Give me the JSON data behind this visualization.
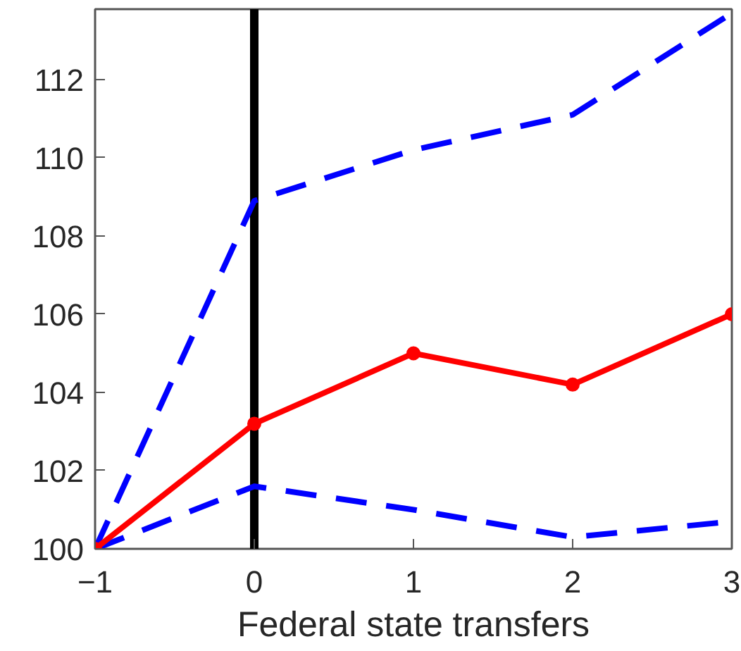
{
  "chart_data": {
    "type": "line",
    "xlabel": "Federal state transfers",
    "x": [
      -1,
      0,
      1,
      2,
      3
    ],
    "series": [
      {
        "color": "#0000ff",
        "values": [
          100,
          108.9,
          110.2,
          111.1,
          113.7
        ],
        "line_style": "dashed",
        "marker": "none"
      },
      {
        "color": "#0000ff",
        "values": [
          100,
          101.6,
          101.0,
          100.3,
          100.7
        ],
        "line_style": "dashed",
        "marker": "none"
      },
      {
        "color": "#ff0000",
        "values": [
          100,
          103.2,
          105.0,
          104.2,
          106.0
        ],
        "line_style": "solid",
        "marker": "circle"
      }
    ],
    "xlim": [
      -1,
      3
    ],
    "ylim": [
      100,
      113.8
    ],
    "xticks": [
      -1,
      0,
      1,
      2,
      3
    ],
    "yticks": [
      100,
      102,
      104,
      106,
      108,
      110,
      112
    ],
    "ref_lines": [
      {
        "axis": "x",
        "value": 0,
        "color": "#000000"
      }
    ],
    "grid": false
  }
}
